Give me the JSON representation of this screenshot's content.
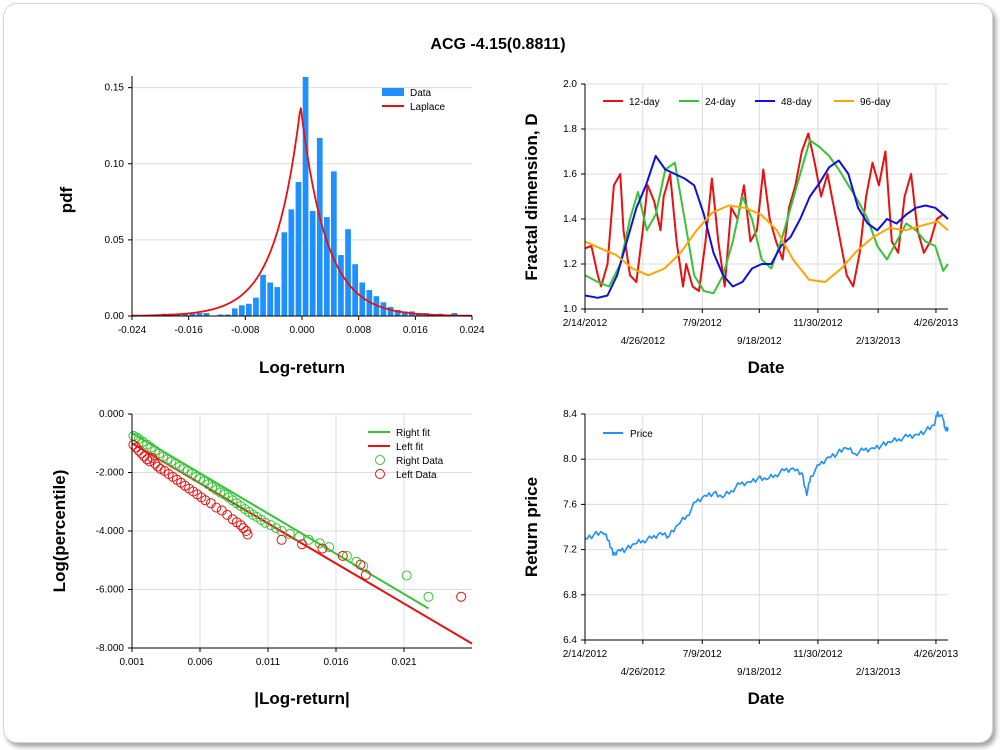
{
  "title": "ACG -4.15(0.8811)",
  "colors": {
    "blue": "#1e90ff",
    "red": "#e81010",
    "green": "#35c435",
    "navy": "#1010d8",
    "orange": "#ffa500"
  },
  "chart_data": [
    {
      "type": "bar",
      "ylabel": "pdf",
      "xlabel": "Log-return",
      "xlim": [
        -0.024,
        0.024
      ],
      "ylim": [
        0,
        0.16
      ],
      "xticks": [
        "-0.024",
        "-0.016",
        "-0.008",
        "0.000",
        "0.008",
        "0.016",
        "0.024"
      ],
      "yticks": [
        "0.00",
        "0.05",
        "0.10",
        "0.15"
      ],
      "legend": [
        "Data",
        "Laplace"
      ],
      "series": [
        {
          "name": "Data",
          "x": [
            -0.0195,
            -0.0185,
            -0.0175,
            -0.0165,
            -0.0155,
            -0.0145,
            -0.0135,
            -0.0125,
            -0.0115,
            -0.0105,
            -0.0095,
            -0.0085,
            -0.0075,
            -0.0065,
            -0.0055,
            -0.0045,
            -0.0035,
            -0.0025,
            -0.0015,
            -0.0005,
            0.0005,
            0.0015,
            0.0025,
            0.0035,
            0.0045,
            0.0055,
            0.0065,
            0.0075,
            0.0085,
            0.0095,
            0.0105,
            0.0115,
            0.0125,
            0.0135,
            0.0145,
            0.0155,
            0.0165,
            0.0175,
            0.0195,
            0.0215
          ],
          "values": [
            0.0015,
            0.0015,
            0.0015,
            0.0015,
            0.0015,
            0.002,
            0.002,
            0.0,
            0.001,
            0.001,
            0.005,
            0.007,
            0.008,
            0.012,
            0.027,
            0.022,
            0.019,
            0.055,
            0.07,
            0.088,
            0.157,
            0.069,
            0.117,
            0.065,
            0.095,
            0.04,
            0.057,
            0.034,
            0.022,
            0.017,
            0.013,
            0.009,
            0.006,
            0.004,
            0.003,
            0.003,
            0.002,
            0.002,
            0.0015,
            0.002
          ]
        },
        {
          "name": "Laplace",
          "type": "line",
          "mu": -0.0002,
          "b": 0.0036,
          "peak": 0.138
        }
      ]
    },
    {
      "type": "line",
      "ylabel": "Fractal dimension, D",
      "xlabel": "Date",
      "ylim": [
        1.0,
        2.0
      ],
      "yticks": [
        "1.0",
        "1.2",
        "1.4",
        "1.6",
        "1.8",
        "2.0"
      ],
      "xticks_top": [
        "2/14/2012",
        "7/9/2012",
        "11/30/2012",
        "4/26/2013"
      ],
      "xticks_bottom": [
        "4/26/2012",
        "9/18/2012",
        "2/13/2013"
      ],
      "x_start": "2012-02-14",
      "x_end": "2013-05-11",
      "legend": [
        "12-day",
        "24-day",
        "48-day",
        "96-day"
      ],
      "series": [
        {
          "name": "12-day",
          "x": [
            "2012-02-14",
            "2012-02-22",
            "2012-03-01",
            "2012-03-05",
            "2012-03-13",
            "2012-03-21",
            "2012-03-29",
            "2012-04-02",
            "2012-04-10",
            "2012-04-18",
            "2012-04-26",
            "2012-05-02",
            "2012-05-10",
            "2012-05-18",
            "2012-05-22",
            "2012-05-30",
            "2012-06-07",
            "2012-06-15",
            "2012-06-19",
            "2012-06-27",
            "2012-07-05",
            "2012-07-13",
            "2012-07-21",
            "2012-07-29",
            "2012-08-06",
            "2012-08-14",
            "2012-08-22",
            "2012-08-30",
            "2012-09-07",
            "2012-09-15",
            "2012-09-23",
            "2012-10-01",
            "2012-10-09",
            "2012-10-17",
            "2012-10-25",
            "2012-11-02",
            "2012-11-10",
            "2012-11-18",
            "2012-11-26",
            "2012-12-04",
            "2012-12-12",
            "2012-12-20",
            "2012-12-28",
            "2013-01-05",
            "2013-01-13",
            "2013-01-21",
            "2013-01-29",
            "2013-02-06",
            "2013-02-14",
            "2013-02-22",
            "2013-03-02",
            "2013-03-10",
            "2013-03-18",
            "2013-03-26",
            "2013-04-03",
            "2013-04-11",
            "2013-04-19",
            "2013-04-27",
            "2013-05-05",
            "2013-05-11"
          ],
          "values": [
            1.27,
            1.28,
            1.15,
            1.1,
            1.2,
            1.55,
            1.6,
            1.35,
            1.15,
            1.12,
            1.35,
            1.55,
            1.48,
            1.35,
            1.5,
            1.6,
            1.3,
            1.1,
            1.2,
            1.1,
            1.08,
            1.3,
            1.58,
            1.3,
            1.1,
            1.45,
            1.4,
            1.55,
            1.3,
            1.35,
            1.62,
            1.4,
            1.3,
            1.22,
            1.45,
            1.55,
            1.7,
            1.78,
            1.65,
            1.5,
            1.6,
            1.45,
            1.3,
            1.15,
            1.1,
            1.25,
            1.5,
            1.65,
            1.55,
            1.7,
            1.3,
            1.25,
            1.5,
            1.6,
            1.35,
            1.25,
            1.3,
            1.4,
            1.42,
            1.4
          ]
        },
        {
          "name": "24-day",
          "x": [
            "2012-02-14",
            "2012-03-01",
            "2012-03-15",
            "2012-03-29",
            "2012-04-10",
            "2012-04-20",
            "2012-05-01",
            "2012-05-12",
            "2012-05-24",
            "2012-06-05",
            "2012-06-17",
            "2012-06-29",
            "2012-07-11",
            "2012-07-23",
            "2012-08-04",
            "2012-08-16",
            "2012-08-28",
            "2012-09-09",
            "2012-09-21",
            "2012-10-03",
            "2012-10-15",
            "2012-10-27",
            "2012-11-08",
            "2012-11-20",
            "2012-12-02",
            "2012-12-14",
            "2012-12-26",
            "2013-01-07",
            "2013-01-19",
            "2013-01-31",
            "2013-02-12",
            "2013-02-24",
            "2013-03-08",
            "2013-03-20",
            "2013-04-01",
            "2013-04-13",
            "2013-04-25",
            "2013-05-05",
            "2013-05-11"
          ],
          "values": [
            1.15,
            1.12,
            1.1,
            1.2,
            1.4,
            1.52,
            1.35,
            1.42,
            1.62,
            1.65,
            1.4,
            1.15,
            1.08,
            1.07,
            1.15,
            1.3,
            1.5,
            1.4,
            1.22,
            1.18,
            1.3,
            1.45,
            1.6,
            1.75,
            1.72,
            1.68,
            1.62,
            1.55,
            1.48,
            1.4,
            1.28,
            1.22,
            1.3,
            1.38,
            1.35,
            1.3,
            1.28,
            1.17,
            1.2
          ]
        },
        {
          "name": "48-day",
          "x": [
            "2012-02-14",
            "2012-03-01",
            "2012-03-13",
            "2012-03-25",
            "2012-04-06",
            "2012-04-18",
            "2012-04-30",
            "2012-05-12",
            "2012-05-24",
            "2012-06-05",
            "2012-06-17",
            "2012-06-29",
            "2012-07-11",
            "2012-07-23",
            "2012-08-04",
            "2012-08-16",
            "2012-08-28",
            "2012-09-09",
            "2012-09-21",
            "2012-10-03",
            "2012-10-15",
            "2012-10-27",
            "2012-11-08",
            "2012-11-20",
            "2012-12-02",
            "2012-12-14",
            "2012-12-26",
            "2013-01-07",
            "2013-01-19",
            "2013-01-31",
            "2013-02-12",
            "2013-02-24",
            "2013-03-08",
            "2013-03-20",
            "2013-04-01",
            "2013-04-13",
            "2013-04-25",
            "2013-05-05",
            "2013-05-11"
          ],
          "values": [
            1.06,
            1.05,
            1.06,
            1.15,
            1.3,
            1.45,
            1.55,
            1.68,
            1.62,
            1.6,
            1.58,
            1.55,
            1.42,
            1.25,
            1.15,
            1.1,
            1.12,
            1.18,
            1.2,
            1.2,
            1.28,
            1.32,
            1.4,
            1.5,
            1.56,
            1.63,
            1.66,
            1.6,
            1.45,
            1.38,
            1.35,
            1.4,
            1.38,
            1.42,
            1.45,
            1.46,
            1.45,
            1.42,
            1.4
          ]
        },
        {
          "name": "96-day",
          "x": [
            "2012-02-14",
            "2012-03-04",
            "2012-03-24",
            "2012-04-13",
            "2012-05-03",
            "2012-05-23",
            "2012-06-12",
            "2012-07-02",
            "2012-07-22",
            "2012-08-11",
            "2012-08-31",
            "2012-09-20",
            "2012-10-10",
            "2012-10-30",
            "2012-11-19",
            "2012-12-09",
            "2012-12-29",
            "2013-01-18",
            "2013-02-07",
            "2013-02-27",
            "2013-03-19",
            "2013-04-08",
            "2013-04-28",
            "2013-05-11"
          ],
          "values": [
            1.3,
            1.27,
            1.24,
            1.18,
            1.15,
            1.18,
            1.25,
            1.35,
            1.43,
            1.46,
            1.45,
            1.42,
            1.35,
            1.22,
            1.13,
            1.12,
            1.18,
            1.26,
            1.32,
            1.36,
            1.35,
            1.37,
            1.39,
            1.35
          ]
        }
      ]
    },
    {
      "type": "scatter",
      "ylabel": "Log(percentile)",
      "xlabel": "|Log-return|",
      "xlim": [
        0.001,
        0.026
      ],
      "ylim": [
        -8.0,
        0.0
      ],
      "xticks": [
        "0.001",
        "0.006",
        "0.011",
        "0.016",
        "0.021"
      ],
      "yticks": [
        "0.000",
        "-2.000",
        "-4.000",
        "-6.000",
        "-8.000"
      ],
      "legend": [
        "Right fit",
        "Left fit",
        "Right Data",
        "Left Data"
      ],
      "series": [
        {
          "name": "Right fit",
          "type": "line",
          "x": [
            0.001,
            0.0228
          ],
          "values": [
            -0.65,
            -6.65
          ]
        },
        {
          "name": "Left fit",
          "type": "line",
          "x": [
            0.001,
            0.026
          ],
          "values": [
            -1.0,
            -7.85
          ]
        },
        {
          "name": "Right Data",
          "x": [
            0.0011,
            0.0013,
            0.0015,
            0.0018,
            0.0021,
            0.0024,
            0.0027,
            0.003,
            0.0033,
            0.0036,
            0.0039,
            0.0042,
            0.0045,
            0.0048,
            0.0051,
            0.0054,
            0.0057,
            0.006,
            0.0063,
            0.0066,
            0.0069,
            0.0072,
            0.0075,
            0.0078,
            0.0081,
            0.0084,
            0.0087,
            0.009,
            0.0093,
            0.0096,
            0.0099,
            0.0102,
            0.0105,
            0.0108,
            0.0112,
            0.0116,
            0.012,
            0.0126,
            0.0133,
            0.014,
            0.0148,
            0.0155,
            0.0168,
            0.0175,
            0.018,
            0.0212,
            0.0228
          ],
          "values": [
            -0.75,
            -0.8,
            -0.85,
            -0.95,
            -1.05,
            -1.15,
            -1.25,
            -1.35,
            -1.45,
            -1.55,
            -1.62,
            -1.7,
            -1.8,
            -1.88,
            -1.95,
            -2.05,
            -2.15,
            -2.22,
            -2.3,
            -2.4,
            -2.5,
            -2.6,
            -2.68,
            -2.75,
            -2.85,
            -2.95,
            -3.05,
            -3.15,
            -3.25,
            -3.35,
            -3.45,
            -3.52,
            -3.62,
            -3.72,
            -3.8,
            -3.9,
            -4.0,
            -4.1,
            -4.2,
            -4.3,
            -4.42,
            -4.55,
            -4.85,
            -5.05,
            -5.2,
            -5.52,
            -6.25
          ]
        },
        {
          "name": "Left Data",
          "x": [
            0.0011,
            0.0013,
            0.0015,
            0.0017,
            0.0019,
            0.0021,
            0.0023,
            0.0025,
            0.0027,
            0.0029,
            0.0031,
            0.0034,
            0.0037,
            0.004,
            0.0043,
            0.0046,
            0.0049,
            0.0052,
            0.0055,
            0.0058,
            0.0061,
            0.0064,
            0.0068,
            0.0072,
            0.0076,
            0.008,
            0.0084,
            0.0087,
            0.009,
            0.0092,
            0.0094,
            0.0095,
            0.012,
            0.0135,
            0.015,
            0.0165,
            0.0178,
            0.0182,
            0.0252
          ],
          "values": [
            -1.05,
            -1.15,
            -1.25,
            -1.35,
            -1.45,
            -1.55,
            -1.62,
            -1.5,
            -1.7,
            -1.8,
            -1.88,
            -1.95,
            -2.05,
            -2.15,
            -2.25,
            -2.35,
            -2.45,
            -2.55,
            -2.65,
            -2.75,
            -2.85,
            -2.95,
            -3.05,
            -3.2,
            -3.3,
            -3.45,
            -3.6,
            -3.7,
            -3.8,
            -3.9,
            -4.0,
            -4.12,
            -4.3,
            -4.45,
            -4.6,
            -4.85,
            -5.15,
            -5.5,
            -6.25
          ]
        }
      ]
    },
    {
      "type": "line",
      "ylabel": "Return price",
      "xlabel": "Date",
      "ylim": [
        6.4,
        8.4
      ],
      "yticks": [
        "6.4",
        "6.8",
        "7.2",
        "7.6",
        "8.0",
        "8.4"
      ],
      "xticks_top": [
        "2/14/2012",
        "7/9/2012",
        "11/30/2012",
        "4/26/2013"
      ],
      "xticks_bottom": [
        "4/26/2012",
        "9/18/2012",
        "2/13/2013"
      ],
      "x_start": "2012-02-14",
      "x_end": "2013-05-11",
      "legend": [
        "Price"
      ],
      "series": [
        {
          "name": "Price",
          "x": [
            "2012-02-14",
            "2012-02-25",
            "2012-03-07",
            "2012-03-15",
            "2012-03-20",
            "2012-03-27",
            "2012-04-05",
            "2012-04-16",
            "2012-04-26",
            "2012-05-07",
            "2012-05-18",
            "2012-05-29",
            "2012-06-09",
            "2012-06-20",
            "2012-07-01",
            "2012-07-12",
            "2012-07-23",
            "2012-08-03",
            "2012-08-14",
            "2012-08-25",
            "2012-09-05",
            "2012-09-16",
            "2012-09-27",
            "2012-10-08",
            "2012-10-19",
            "2012-10-30",
            "2012-11-10",
            "2012-11-16",
            "2012-11-21",
            "2012-12-02",
            "2012-12-13",
            "2012-12-24",
            "2013-01-04",
            "2013-01-15",
            "2013-01-26",
            "2013-02-06",
            "2013-02-17",
            "2013-02-28",
            "2013-03-11",
            "2013-03-22",
            "2013-04-02",
            "2013-04-13",
            "2013-04-24",
            "2013-04-28",
            "2013-05-05",
            "2013-05-08",
            "2013-05-11"
          ],
          "values": [
            7.3,
            7.33,
            7.35,
            7.28,
            7.15,
            7.2,
            7.2,
            7.25,
            7.28,
            7.3,
            7.35,
            7.32,
            7.42,
            7.5,
            7.62,
            7.68,
            7.7,
            7.66,
            7.72,
            7.78,
            7.8,
            7.83,
            7.82,
            7.86,
            7.9,
            7.92,
            7.88,
            7.68,
            7.85,
            7.95,
            8.02,
            8.05,
            8.1,
            8.05,
            8.08,
            8.1,
            8.12,
            8.15,
            8.18,
            8.2,
            8.22,
            8.25,
            8.3,
            8.42,
            8.35,
            8.26,
            8.28
          ]
        }
      ]
    }
  ]
}
